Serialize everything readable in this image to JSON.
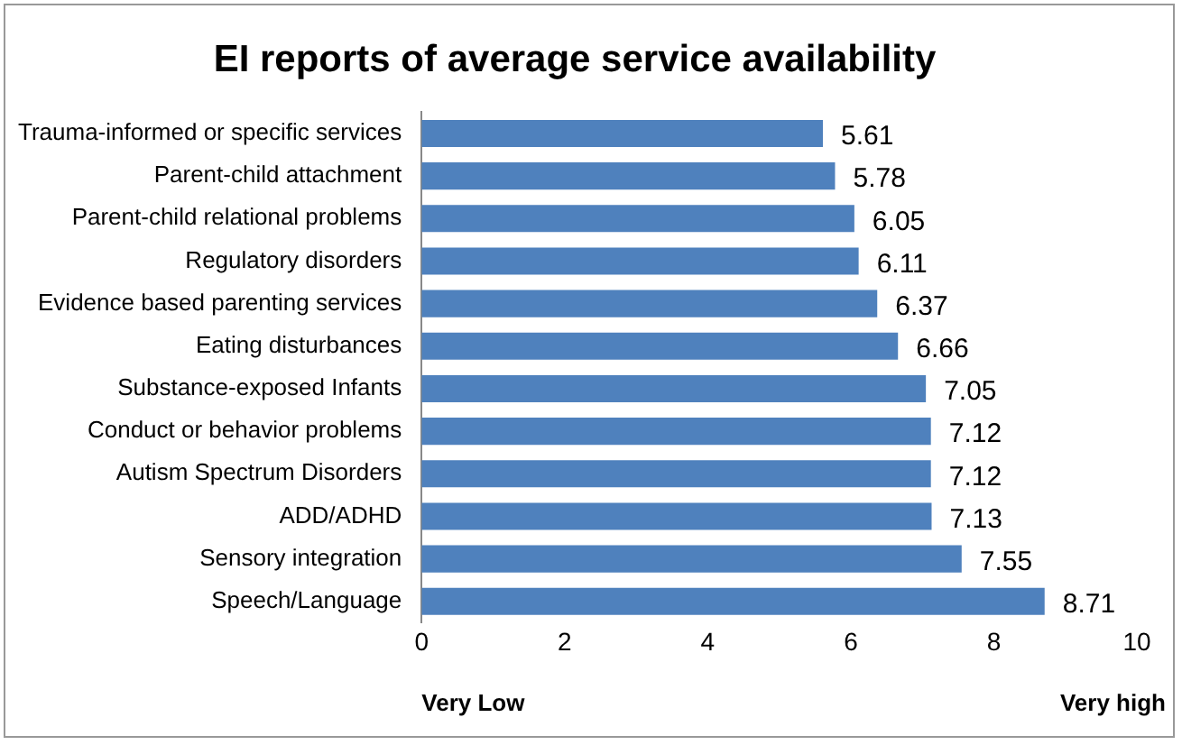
{
  "chart_data": {
    "type": "bar",
    "orientation": "horizontal",
    "title": "EI reports of average service availability",
    "categories": [
      "Trauma-informed or specific services",
      "Parent-child attachment",
      "Parent-child relational problems",
      "Regulatory disorders",
      "Evidence based parenting services",
      "Eating disturbances",
      "Substance-exposed Infants",
      "Conduct or behavior problems",
      "Autism Spectrum Disorders",
      "ADD/ADHD",
      "Sensory integration",
      "Speech/Language"
    ],
    "values": [
      5.61,
      5.78,
      6.05,
      6.11,
      6.37,
      6.66,
      7.05,
      7.12,
      7.12,
      7.13,
      7.55,
      8.71
    ],
    "color": "#4f81bd",
    "xlim": [
      0,
      10
    ],
    "xticks": [
      0,
      2,
      4,
      6,
      8,
      10
    ],
    "grid": false,
    "legend": false,
    "data_labels": true,
    "annotations": [
      "Very Low",
      "Very high"
    ]
  }
}
